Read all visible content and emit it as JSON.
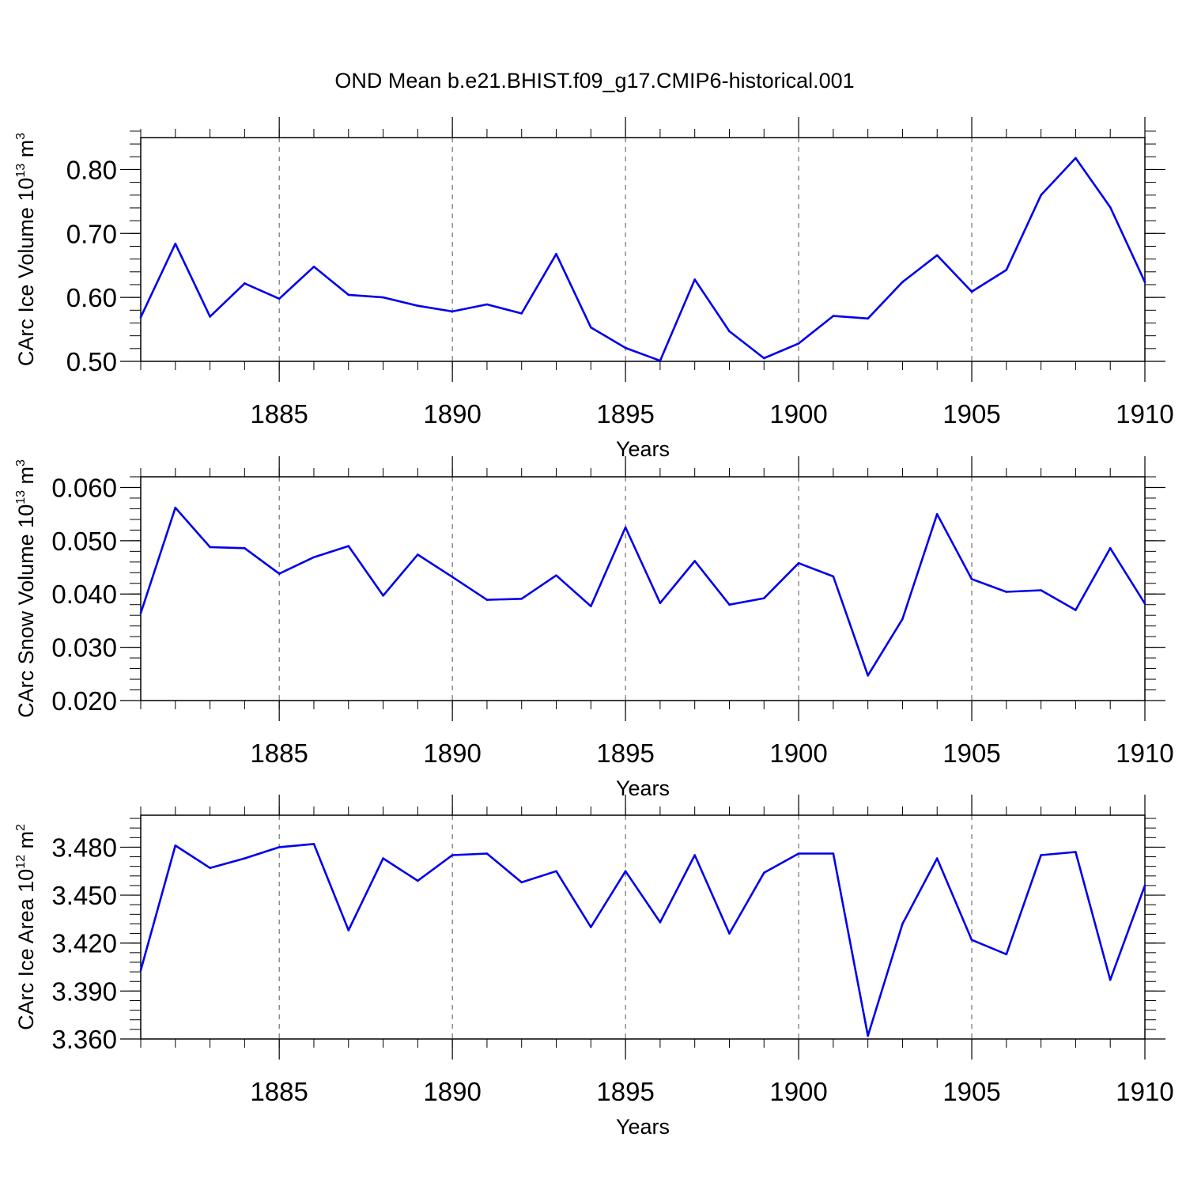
{
  "figure": {
    "title": "OND Mean b.e21.BHIST.f09_g17.CMIP6-historical.001",
    "line_color": "#0000ee",
    "axis_color": "#000000",
    "grid_color": "#555555"
  },
  "chart_data": [
    {
      "type": "line",
      "ylabel_main": "CArc Ice Volume 10",
      "ylabel_sup": "13",
      "ylabel_unit": " m",
      "ylabel_unit_sup": "3",
      "xlabel": "Years",
      "xlim": [
        1881,
        1910
      ],
      "ylim": [
        0.5,
        0.85
      ],
      "x_major_ticks": [
        1885,
        1890,
        1895,
        1900,
        1905,
        1910
      ],
      "x_tick_labels": [
        "1885",
        "1890",
        "1895",
        "1900",
        "1905",
        "1910"
      ],
      "y_major_ticks": [
        0.5,
        0.6,
        0.7,
        0.8
      ],
      "y_tick_labels": [
        "0.50",
        "0.60",
        "0.70",
        "0.80"
      ],
      "y_minor_step": 0.02,
      "x": [
        1881,
        1882,
        1883,
        1884,
        1885,
        1886,
        1887,
        1888,
        1889,
        1890,
        1891,
        1892,
        1893,
        1894,
        1895,
        1896,
        1897,
        1898,
        1899,
        1900,
        1901,
        1902,
        1903,
        1904,
        1905,
        1906,
        1907,
        1908,
        1909,
        1910
      ],
      "values": [
        0.569,
        0.684,
        0.57,
        0.622,
        0.598,
        0.648,
        0.604,
        0.6,
        0.587,
        0.578,
        0.589,
        0.575,
        0.668,
        0.553,
        0.521,
        0.501,
        0.628,
        0.547,
        0.505,
        0.528,
        0.571,
        0.567,
        0.624,
        0.666,
        0.609,
        0.643,
        0.76,
        0.818,
        0.741,
        0.624
      ]
    },
    {
      "type": "line",
      "ylabel_main": "CArc Snow Volume 10",
      "ylabel_sup": "13",
      "ylabel_unit": " m",
      "ylabel_unit_sup": "3",
      "xlabel": "Years",
      "xlim": [
        1881,
        1910
      ],
      "ylim": [
        0.02,
        0.062
      ],
      "x_major_ticks": [
        1885,
        1890,
        1895,
        1900,
        1905,
        1910
      ],
      "x_tick_labels": [
        "1885",
        "1890",
        "1895",
        "1900",
        "1905",
        "1910"
      ],
      "y_major_ticks": [
        0.02,
        0.03,
        0.04,
        0.05,
        0.06
      ],
      "y_tick_labels": [
        "0.020",
        "0.030",
        "0.040",
        "0.050",
        "0.060"
      ],
      "y_minor_step": 0.002,
      "x": [
        1881,
        1882,
        1883,
        1884,
        1885,
        1886,
        1887,
        1888,
        1889,
        1890,
        1891,
        1892,
        1893,
        1894,
        1895,
        1896,
        1897,
        1898,
        1899,
        1900,
        1901,
        1902,
        1903,
        1904,
        1905,
        1906,
        1907,
        1908,
        1909,
        1910
      ],
      "values": [
        0.0364,
        0.0562,
        0.0488,
        0.0486,
        0.0438,
        0.0469,
        0.049,
        0.0397,
        0.0474,
        0.0432,
        0.0389,
        0.0391,
        0.0435,
        0.0377,
        0.0525,
        0.0383,
        0.0462,
        0.038,
        0.0392,
        0.0458,
        0.0433,
        0.0247,
        0.0353,
        0.055,
        0.0428,
        0.0404,
        0.0407,
        0.037,
        0.0486,
        0.0382
      ]
    },
    {
      "type": "line",
      "ylabel_main": "CArc Ice Area 10",
      "ylabel_sup": "12",
      "ylabel_unit": " m",
      "ylabel_unit_sup": "2",
      "xlabel": "Years",
      "xlim": [
        1881,
        1910
      ],
      "ylim": [
        3.36,
        3.5
      ],
      "x_major_ticks": [
        1885,
        1890,
        1895,
        1900,
        1905,
        1910
      ],
      "x_tick_labels": [
        "1885",
        "1890",
        "1895",
        "1900",
        "1905",
        "1910"
      ],
      "y_major_ticks": [
        3.36,
        3.39,
        3.42,
        3.45,
        3.48
      ],
      "y_tick_labels": [
        "3.360",
        "3.390",
        "3.420",
        "3.450",
        "3.480"
      ],
      "y_minor_step": 0.006,
      "x": [
        1881,
        1882,
        1883,
        1884,
        1885,
        1886,
        1887,
        1888,
        1889,
        1890,
        1891,
        1892,
        1893,
        1894,
        1895,
        1896,
        1897,
        1898,
        1899,
        1900,
        1901,
        1902,
        1903,
        1904,
        1905,
        1906,
        1907,
        1908,
        1909,
        1910
      ],
      "values": [
        3.403,
        3.481,
        3.467,
        3.473,
        3.48,
        3.482,
        3.428,
        3.473,
        3.459,
        3.475,
        3.476,
        3.458,
        3.465,
        3.43,
        3.465,
        3.433,
        3.475,
        3.426,
        3.464,
        3.476,
        3.476,
        3.362,
        3.432,
        3.473,
        3.422,
        3.413,
        3.475,
        3.477,
        3.397,
        3.456
      ]
    }
  ]
}
